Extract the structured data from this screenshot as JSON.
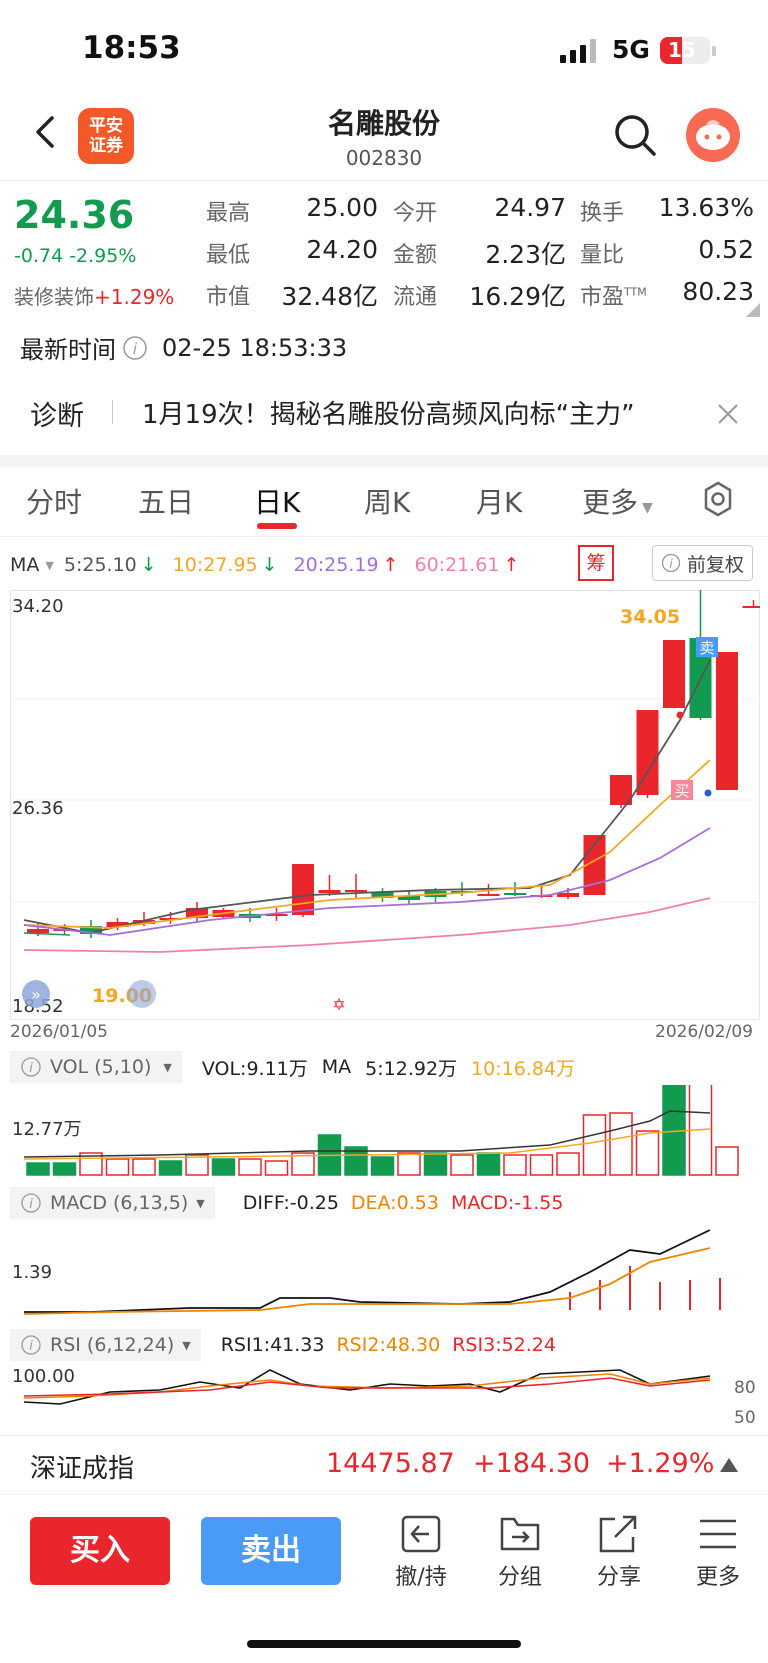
{
  "status": {
    "time": "18:53",
    "network": "5G",
    "battery": "15"
  },
  "nav": {
    "title": "名雕股份",
    "code": "002830",
    "logo_line1": "平安",
    "logo_line2": "证券"
  },
  "quote": {
    "price": "24.36",
    "change": "-0.74 -2.95%",
    "sector_name": "装修装饰",
    "sector_change": "+1.29%",
    "fields": [
      {
        "label": "最高",
        "value": "25.00"
      },
      {
        "label": "今开",
        "value": "24.97"
      },
      {
        "label": "换手",
        "value": "13.63%"
      },
      {
        "label": "最低",
        "value": "24.20"
      },
      {
        "label": "金额",
        "value": "2.23亿"
      },
      {
        "label": "量比",
        "value": "0.52"
      },
      {
        "label": "市值",
        "value": "32.48亿"
      },
      {
        "label": "流通",
        "value": "16.29亿"
      },
      {
        "label": "市盈",
        "value": "80.23",
        "sup": "TTM"
      }
    ]
  },
  "updated": {
    "label": "最新时间",
    "value": "02-25 18:53:33"
  },
  "diagnosis": {
    "label": "诊断",
    "text": "1月19次！揭秘名雕股份高频风向标“主力”"
  },
  "tabs": [
    "分时",
    "五日",
    "日K",
    "周K",
    "月K",
    "更多"
  ],
  "ma": {
    "label": "MA",
    "ma5": "5:25.10",
    "ma10": "10:27.95",
    "ma20": "20:25.19",
    "ma60": "60:21.61",
    "chip": "筹",
    "adjust": "前复权"
  },
  "colors": {
    "up": "#e8262b",
    "down": "#129a4f",
    "ma5": "#555555",
    "ma10": "#f5a623",
    "ma20": "#a46fd8",
    "ma60": "#f07fb0",
    "buy": "#e8262b",
    "sell": "#4a9bf5"
  },
  "kline": {
    "y_top_label": "34.20",
    "y_mid_label": "26.36",
    "y_bottom_label": "18.52",
    "low_label": "19.00",
    "high_label": "34.05",
    "start_date": "2026/01/05",
    "end_date": "2026/02/09",
    "sell_tag": "卖",
    "buy_tag": "买"
  },
  "vol": {
    "title": "VOL (5,10)",
    "vol": "VOL:9.11万",
    "ma": "MA",
    "ma5": "5:12.92万",
    "ma10": "10:16.84万",
    "y_label": "12.77万"
  },
  "macd": {
    "title": "MACD (6,13,5)",
    "diff": "DIFF:-0.25",
    "dea": "DEA:0.53",
    "macd": "MACD:-1.55",
    "y_label": "1.39"
  },
  "rsi": {
    "title": "RSI (6,12,24)",
    "rsi1": "RSI1:41.33",
    "rsi2": "RSI2:48.30",
    "rsi3": "RSI3:52.24",
    "y_label": "100.00",
    "r80": "80",
    "r50": "50"
  },
  "index": {
    "name": "深证成指",
    "value": "14475.87",
    "change": "+184.30",
    "pct": "+1.29%"
  },
  "actions": {
    "buy": "买入",
    "sell": "卖出",
    "t1": "撤/持",
    "t2": "分组",
    "t3": "分享",
    "t4": "更多"
  }
}
